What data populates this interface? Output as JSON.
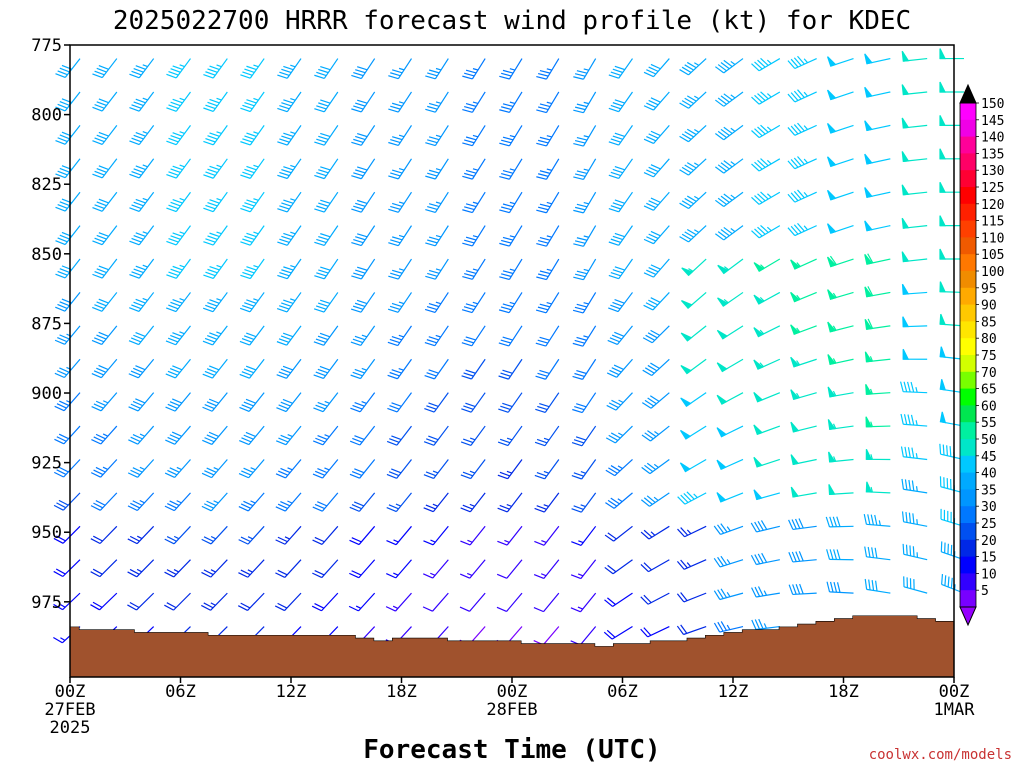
{
  "chart_data": {
    "type": "wind_barb_profile",
    "title": "2025022700 HRRR forecast wind profile (kt) for KDEC",
    "xlabel": "Forecast Time (UTC)",
    "ylabel": "",
    "y_axis": {
      "ticks": [
        775,
        800,
        825,
        850,
        875,
        900,
        925,
        950,
        975
      ],
      "tick_labels": [
        "775",
        "800",
        "825",
        "850",
        "875",
        "900",
        "925",
        "950",
        "975"
      ],
      "range": [
        775,
        1002
      ],
      "inverted": true
    },
    "x_axis": {
      "range_hours": [
        0,
        48
      ],
      "ticks": [
        {
          "hour": 0,
          "lines": [
            "00Z",
            "27FEB",
            "2025"
          ]
        },
        {
          "hour": 6,
          "lines": [
            "06Z"
          ]
        },
        {
          "hour": 12,
          "lines": [
            "12Z"
          ]
        },
        {
          "hour": 18,
          "lines": [
            "18Z"
          ]
        },
        {
          "hour": 24,
          "lines": [
            "00Z",
            "28FEB"
          ]
        },
        {
          "hour": 30,
          "lines": [
            "06Z"
          ]
        },
        {
          "hour": 36,
          "lines": [
            "12Z"
          ]
        },
        {
          "hour": 42,
          "lines": [
            "18Z"
          ]
        },
        {
          "hour": 48,
          "lines": [
            "00Z",
            "1MAR"
          ]
        }
      ]
    },
    "colorbar": {
      "label_values": [
        "150",
        "145",
        "140",
        "135",
        "130",
        "125",
        "120",
        "115",
        "110",
        "105",
        "100",
        "95",
        "90",
        "85",
        "80",
        "75",
        "70",
        "65",
        "60",
        "55",
        "50",
        "45",
        "40",
        "35",
        "30",
        "25",
        "20",
        "15",
        "10",
        "5"
      ],
      "colors": [
        "#ff00ff",
        "#f000e6",
        "#ff0099",
        "#ff0066",
        "#ff0033",
        "#ff0000",
        "#ff2000",
        "#ff4000",
        "#f05a00",
        "#ff7800",
        "#f08c00",
        "#ffaa00",
        "#ffc800",
        "#ffe600",
        "#ffff00",
        "#d2ff00",
        "#78ff00",
        "#00ff00",
        "#00e650",
        "#00f0a0",
        "#00e6c8",
        "#00c8ff",
        "#00aaff",
        "#0096ff",
        "#0078ff",
        "#0050f0",
        "#0028e6",
        "#0000ff",
        "#3200ff",
        "#7800ff"
      ],
      "top_color": "#000000",
      "bottom_color": "#9600ff"
    },
    "barb_grid": {
      "hours": [
        0,
        2,
        4,
        6,
        8,
        10,
        12,
        14,
        16,
        18,
        20,
        22,
        24,
        26,
        28,
        30,
        32,
        34,
        36,
        38,
        40,
        42,
        44,
        46,
        48
      ],
      "pressures": [
        777,
        789,
        801,
        813,
        825,
        837,
        849,
        861,
        873,
        885,
        897,
        909,
        921,
        933,
        945,
        957,
        969,
        981,
        993
      ]
    },
    "surface_pressure": [
      [
        0,
        984
      ],
      [
        0.5,
        985
      ],
      [
        1.5,
        985
      ],
      [
        3.5,
        986
      ],
      [
        7.5,
        987
      ],
      [
        14.5,
        987
      ],
      [
        15.5,
        988
      ],
      [
        16.5,
        989
      ],
      [
        17.5,
        988
      ],
      [
        19.5,
        988
      ],
      [
        20.5,
        989
      ],
      [
        23.5,
        989
      ],
      [
        24.5,
        990
      ],
      [
        26.5,
        990
      ],
      [
        28.5,
        991
      ],
      [
        29.5,
        990
      ],
      [
        30.5,
        990
      ],
      [
        31.5,
        989
      ],
      [
        32.5,
        989
      ],
      [
        33.5,
        988
      ],
      [
        34.5,
        987
      ],
      [
        35.5,
        986
      ],
      [
        36.5,
        985
      ],
      [
        37.5,
        985
      ],
      [
        38.5,
        984
      ],
      [
        39.5,
        983
      ],
      [
        40.5,
        982
      ],
      [
        41.5,
        981
      ],
      [
        42.5,
        980
      ],
      [
        43.5,
        980
      ],
      [
        44.5,
        980
      ],
      [
        45.5,
        980
      ],
      [
        46,
        981
      ],
      [
        47,
        982
      ],
      [
        48,
        983
      ]
    ],
    "credit": "coolwx.com/models",
    "colors": {
      "terrain": "#a0522d"
    }
  }
}
